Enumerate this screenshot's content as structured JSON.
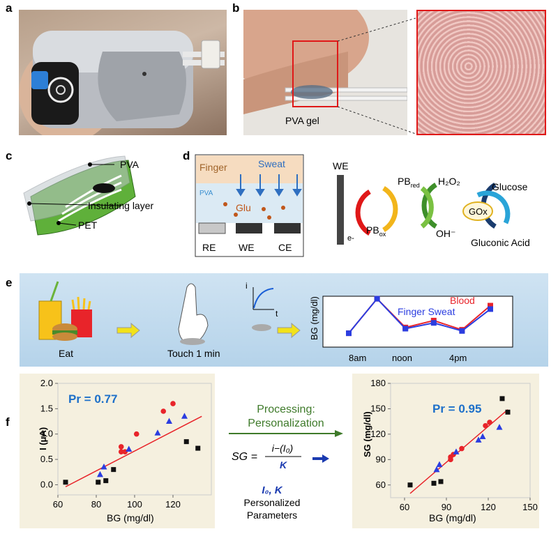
{
  "panels": {
    "a": "a",
    "b": "b",
    "c": "c",
    "d": "d",
    "e": "e",
    "f": "f"
  },
  "panel_b": {
    "gel_label": "PVA gel"
  },
  "panel_c": {
    "pva": "PVA",
    "insulating": "Insulating layer",
    "pet": "PET"
  },
  "panel_d": {
    "finger": "Finger",
    "sweat": "Sweat",
    "pva": "PVA",
    "glu": "Glu",
    "re": "RE",
    "we": "WE",
    "ce": "CE",
    "we2": "WE",
    "pb_red": "PB",
    "pb_red_sub": "red",
    "pb_ox": "PB",
    "pb_ox_sub": "ox",
    "h2o2": "H₂O₂",
    "oh": "OH⁻",
    "glucose": "Glucose",
    "gox": "GOx",
    "gluconic": "Gluconic Acid",
    "e": "e-"
  },
  "panel_e": {
    "eat": "Eat",
    "touch": "Touch 1 min",
    "i": "i",
    "t": "t",
    "ylabel": "BG (mg/dl)",
    "blood": "Blood",
    "sweat": "Finger Sweat",
    "x_ticks": [
      "8am",
      "noon",
      "4pm"
    ]
  },
  "panel_f": {
    "processing1": "Processing:",
    "processing2": "Personalization",
    "formula_lhs": "SG =",
    "formula_num": "i−(I₀)",
    "formula_den": "K",
    "params_sym": "I₀, K",
    "params1": "Personalized",
    "params2": "Parameters"
  },
  "colors": {
    "red": "#e8242a",
    "blue": "#2b3de0",
    "black": "#111111",
    "fit": "#e8242a"
  },
  "chart_data": [
    {
      "type": "line",
      "series": [
        {
          "name": "Blood",
          "values": [
            1,
            4,
            1.5,
            2.1,
            1.3,
            3.4
          ]
        },
        {
          "name": "Finger Sweat",
          "values": [
            1,
            4,
            1.4,
            1.9,
            1.2,
            3.1
          ]
        }
      ],
      "ylabel": "BG (mg/dl)",
      "x_ticks": [
        "8am",
        "noon",
        "4pm"
      ]
    },
    {
      "type": "scatter",
      "title": "Pr = 0.77",
      "xlabel": "BG (mg/dl)",
      "ylabel": "I (μA)",
      "xlim": [
        60,
        140
      ],
      "ylim": [
        -0.2,
        2.0
      ],
      "x_ticks": [
        "60",
        "80",
        "100",
        "120"
      ],
      "y_ticks": [
        "0.0",
        "0.5",
        "1.0",
        "1.5",
        "2.0"
      ],
      "series": [
        {
          "color": "red",
          "marker": "circle",
          "points": [
            [
              93,
              0.75
            ],
            [
              93,
              0.65
            ],
            [
              95,
              0.65
            ],
            [
              101,
              1.0
            ],
            [
              115,
              1.45
            ],
            [
              120,
              1.6
            ]
          ]
        },
        {
          "color": "blue",
          "marker": "triangle",
          "points": [
            [
              82,
              0.2
            ],
            [
              84,
              0.35
            ],
            [
              97,
              0.7
            ],
            [
              112,
              1.02
            ],
            [
              118,
              1.25
            ],
            [
              126,
              1.35
            ]
          ]
        },
        {
          "color": "black",
          "marker": "square",
          "points": [
            [
              64,
              0.05
            ],
            [
              81,
              0.05
            ],
            [
              85,
              0.08
            ],
            [
              89,
              0.3
            ],
            [
              127,
              0.85
            ],
            [
              133,
              0.72
            ]
          ]
        }
      ],
      "fit": [
        [
          64,
          -0.04
        ],
        [
          135,
          1.35
        ]
      ]
    },
    {
      "type": "scatter",
      "title": "Pr = 0.95",
      "xlabel": "BG (mg/dl)",
      "ylabel": "SG (mg/dl)",
      "xlim": [
        50,
        150
      ],
      "ylim": [
        45,
        180
      ],
      "x_ticks": [
        "60",
        "90",
        "120",
        "150"
      ],
      "y_ticks": [
        "60",
        "90",
        "120",
        "150",
        "180"
      ],
      "series": [
        {
          "color": "red",
          "marker": "circle",
          "points": [
            [
              93,
              93
            ],
            [
              93,
              90
            ],
            [
              95,
              96
            ],
            [
              101,
              103
            ],
            [
              118,
              130
            ],
            [
              121,
              134
            ]
          ]
        },
        {
          "color": "blue",
          "marker": "triangle",
          "points": [
            [
              83,
              78
            ],
            [
              85,
              84
            ],
            [
              97,
              99
            ],
            [
              113,
              113
            ],
            [
              116,
              117
            ],
            [
              128,
              128
            ]
          ]
        },
        {
          "color": "black",
          "marker": "square",
          "points": [
            [
              64,
              60
            ],
            [
              81,
              62
            ],
            [
              86,
              64
            ],
            [
              130,
              162
            ],
            [
              134,
              146
            ]
          ]
        }
      ],
      "fit": [
        [
          64,
          50
        ],
        [
          134,
          149
        ]
      ]
    }
  ]
}
